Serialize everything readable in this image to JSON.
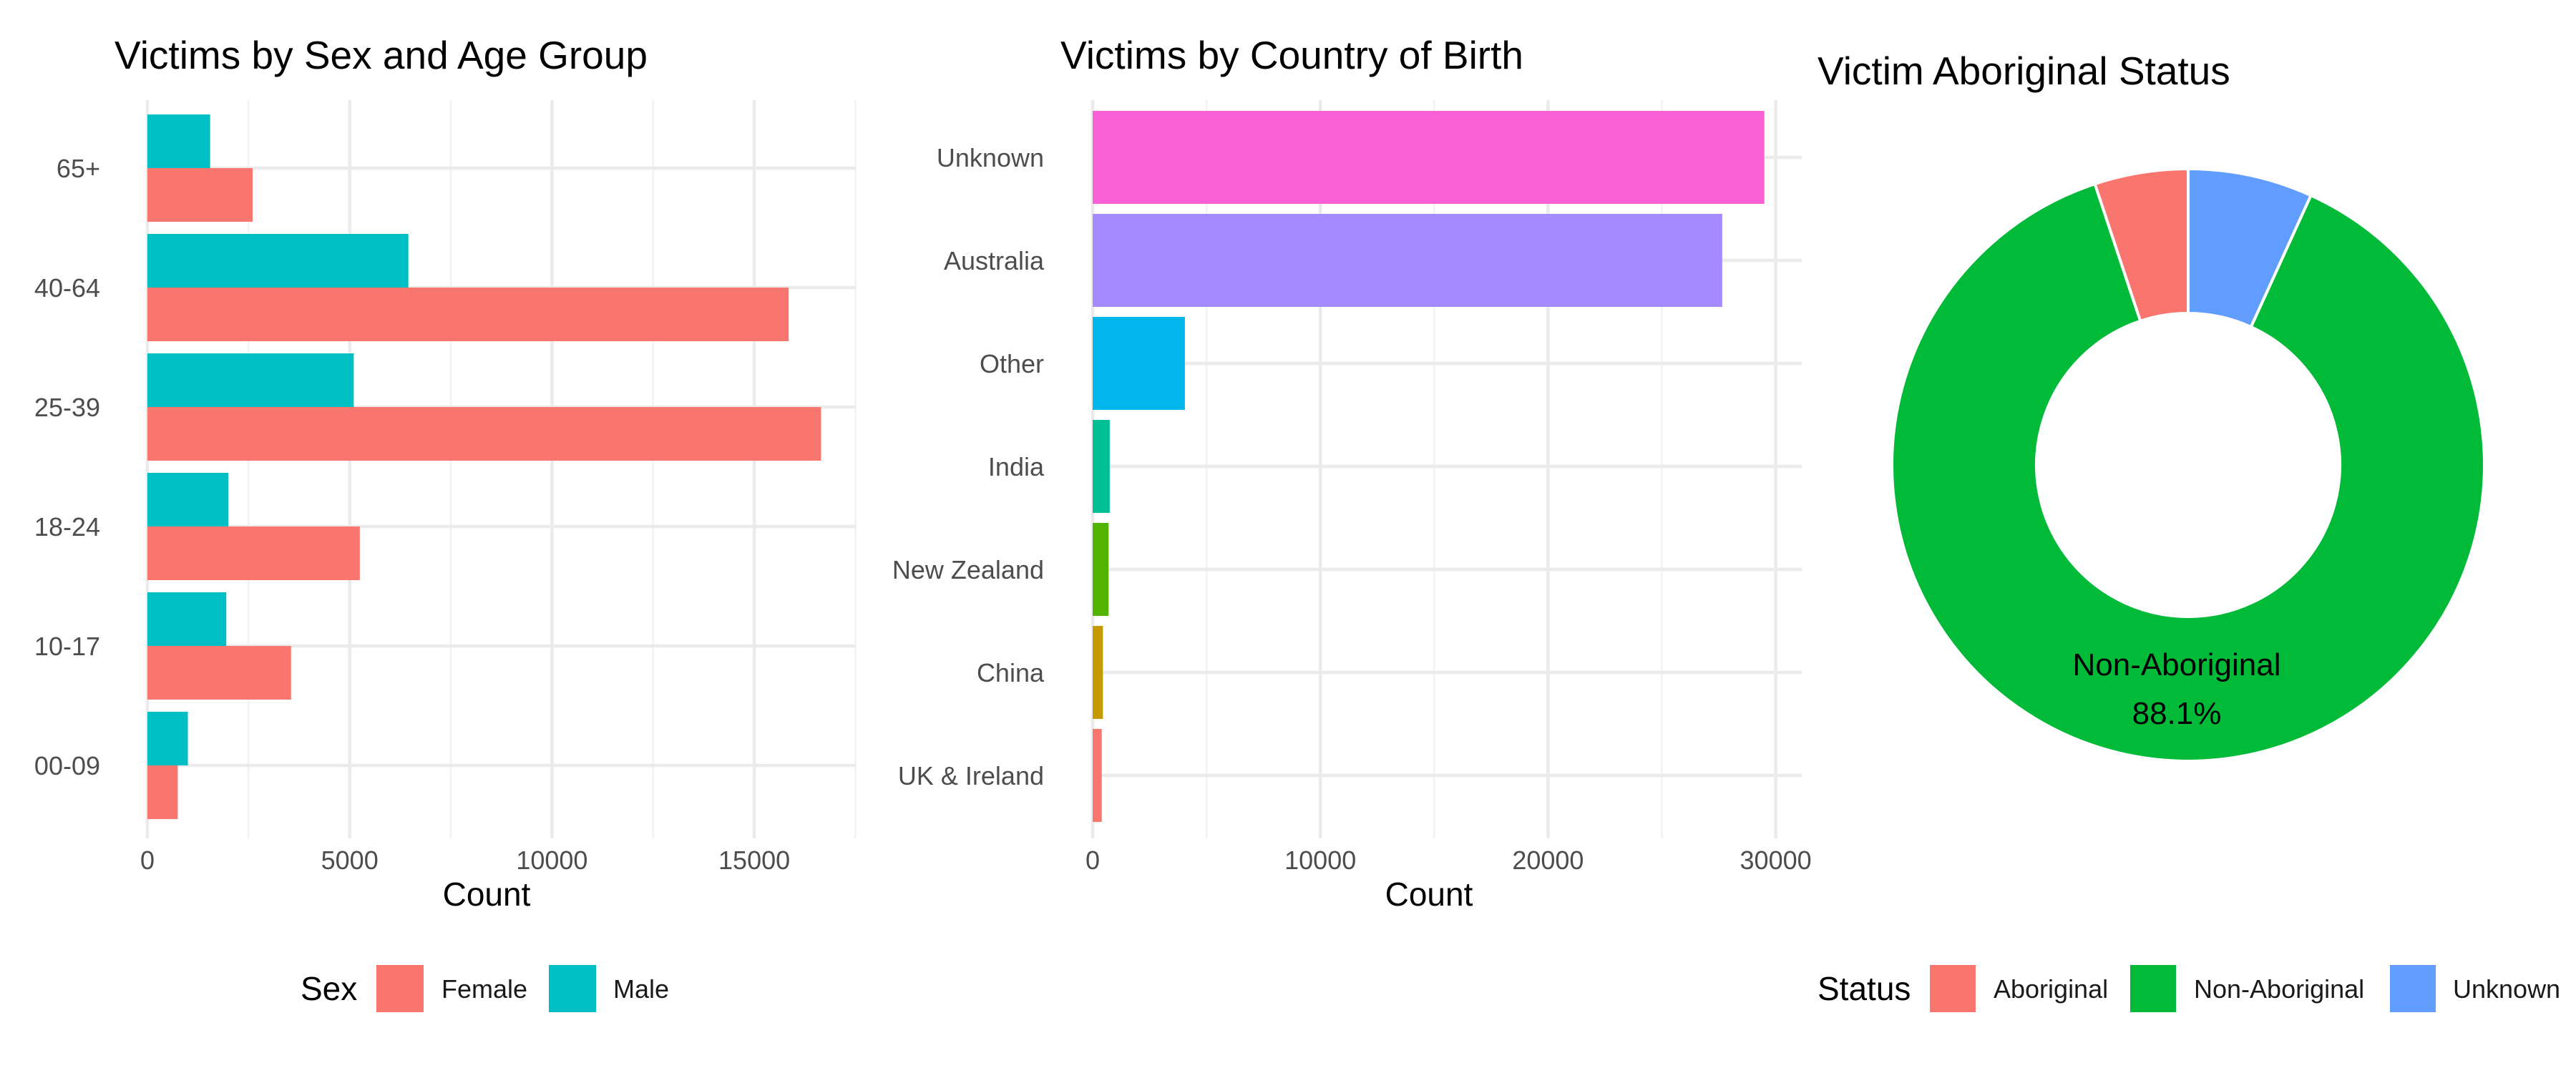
{
  "chart_data": [
    {
      "type": "bar",
      "orientation": "horizontal",
      "title": "Victims by Sex and Age Group",
      "xlabel": "Count",
      "ylabel": "",
      "categories": [
        "00-09",
        "10-17",
        "18-24",
        "25-39",
        "40-64",
        "65+"
      ],
      "series": [
        {
          "name": "Female",
          "color": "#F8766D",
          "values": [
            750,
            3550,
            5250,
            16650,
            15850,
            2600
          ]
        },
        {
          "name": "Male",
          "color": "#00BFC4",
          "values": [
            1000,
            1950,
            2000,
            5100,
            6450,
            1550
          ]
        }
      ],
      "xlim": [
        0,
        17500
      ],
      "xticks": [
        0,
        5000,
        10000,
        15000
      ],
      "grid": true,
      "legend": {
        "title": "Sex",
        "position": "bottom"
      }
    },
    {
      "type": "bar",
      "orientation": "horizontal",
      "title": "Victims by Country of Birth",
      "xlabel": "Count",
      "ylabel": "",
      "categories": [
        "UK & Ireland",
        "China",
        "New Zealand",
        "India",
        "Other",
        "Australia",
        "Unknown"
      ],
      "values": [
        400,
        450,
        700,
        750,
        4050,
        27650,
        29500
      ],
      "colors": [
        "#F8766D",
        "#C49A00",
        "#53B400",
        "#00C094",
        "#00B6EB",
        "#A58AFF",
        "#FB61D7"
      ],
      "xlim": [
        0,
        31000
      ],
      "xticks": [
        0,
        10000,
        20000,
        30000
      ],
      "grid": true
    },
    {
      "type": "pie",
      "donut": true,
      "title": "Victim Aboriginal Status",
      "slices": [
        {
          "label": "Aboriginal",
          "value": 5.1,
          "color": "#F8766D"
        },
        {
          "label": "Non-Aboriginal",
          "value": 88.1,
          "color": "#00BA38"
        },
        {
          "label": "Unknown",
          "value": 6.8,
          "color": "#619CFF"
        }
      ],
      "slice_label": {
        "name": "Non-Aboriginal",
        "percent": "88.1%"
      },
      "legend": {
        "title": "Status",
        "position": "bottom"
      }
    }
  ]
}
